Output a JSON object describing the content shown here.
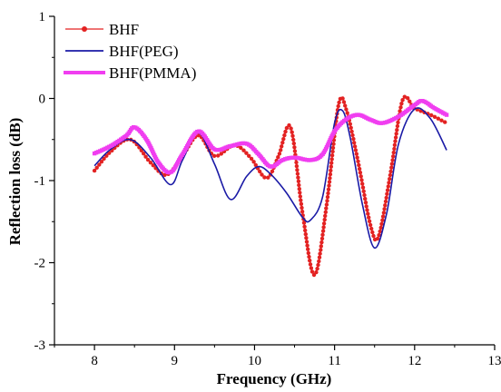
{
  "chart_data": {
    "type": "line",
    "title": "",
    "xlabel": "Frequency (GHz)",
    "ylabel": "Reflection loss (dB)",
    "xlim": [
      7.5,
      13
    ],
    "ylim": [
      -3,
      1
    ],
    "xticks": [
      8,
      9,
      10,
      11,
      12,
      13
    ],
    "yticks": [
      -3,
      -2,
      -1,
      0,
      1
    ],
    "x_tick_labels": [
      "8",
      "9",
      "10",
      "11",
      "12",
      "13"
    ],
    "y_tick_labels": [
      "-3",
      "-2",
      "-1",
      "0",
      "1"
    ],
    "grid": false,
    "legend_position": "top-left",
    "series": [
      {
        "name": "BHF",
        "color": "#e32222",
        "marker": "circle",
        "x": [
          8.0,
          8.2,
          8.45,
          8.7,
          8.9,
          9.1,
          9.3,
          9.5,
          9.75,
          9.95,
          10.15,
          10.3,
          10.45,
          10.6,
          10.75,
          10.9,
          11.05,
          11.15,
          11.3,
          11.45,
          11.55,
          11.7,
          11.85,
          12.0,
          12.2,
          12.4
        ],
        "y": [
          -0.88,
          -0.65,
          -0.5,
          -0.78,
          -0.93,
          -0.7,
          -0.45,
          -0.7,
          -0.57,
          -0.72,
          -0.97,
          -0.7,
          -0.35,
          -1.4,
          -2.15,
          -1.3,
          -0.08,
          -0.15,
          -0.8,
          -1.55,
          -1.68,
          -0.9,
          -0.02,
          -0.12,
          -0.2,
          -0.3
        ]
      },
      {
        "name": "BHF(PEG)",
        "color": "#1a1aa6",
        "marker": "none",
        "x": [
          8.0,
          8.2,
          8.45,
          8.7,
          8.95,
          9.1,
          9.3,
          9.5,
          9.7,
          9.9,
          10.05,
          10.2,
          10.4,
          10.6,
          10.7,
          10.85,
          11.0,
          11.1,
          11.2,
          11.35,
          11.5,
          11.65,
          11.8,
          12.0,
          12.2,
          12.4
        ],
        "y": [
          -0.82,
          -0.62,
          -0.5,
          -0.72,
          -1.05,
          -0.75,
          -0.42,
          -0.8,
          -1.23,
          -0.95,
          -0.83,
          -0.92,
          -1.15,
          -1.45,
          -1.48,
          -1.2,
          -0.3,
          -0.15,
          -0.5,
          -1.3,
          -1.82,
          -1.4,
          -0.55,
          -0.13,
          -0.25,
          -0.63
        ]
      },
      {
        "name": "BHF(PMMA)",
        "color": "#f03ef0",
        "marker": "square",
        "x": [
          8.0,
          8.2,
          8.4,
          8.5,
          8.65,
          8.8,
          8.95,
          9.1,
          9.3,
          9.5,
          9.7,
          9.9,
          10.05,
          10.2,
          10.35,
          10.5,
          10.7,
          10.85,
          11.0,
          11.15,
          11.3,
          11.45,
          11.6,
          11.8,
          12.0,
          12.1,
          12.25,
          12.4
        ],
        "y": [
          -0.67,
          -0.58,
          -0.45,
          -0.35,
          -0.5,
          -0.78,
          -0.9,
          -0.68,
          -0.4,
          -0.62,
          -0.58,
          -0.55,
          -0.68,
          -0.83,
          -0.75,
          -0.72,
          -0.75,
          -0.68,
          -0.4,
          -0.25,
          -0.2,
          -0.26,
          -0.3,
          -0.22,
          -0.08,
          -0.03,
          -0.12,
          -0.2
        ]
      }
    ]
  }
}
